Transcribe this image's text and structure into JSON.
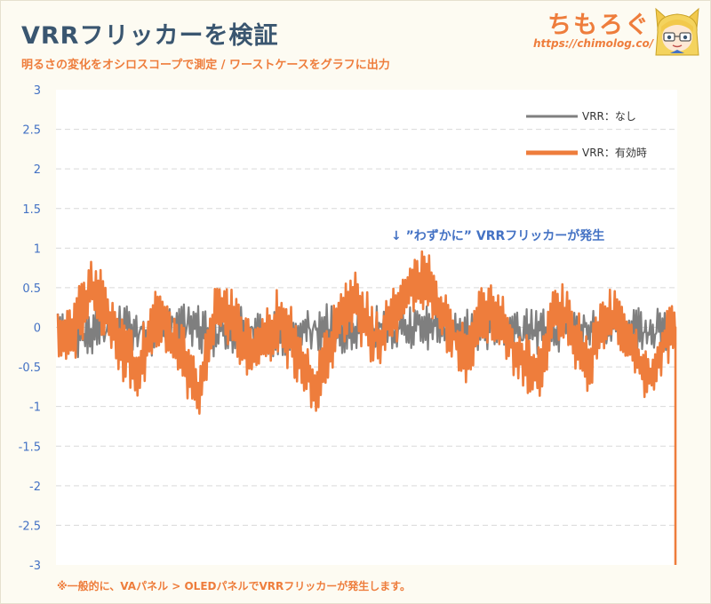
{
  "header": {
    "title": "VRRフリッカーを検証",
    "subtitle": "明るさの変化をオシロスコープで測定 / ワーストケースをグラフに出力"
  },
  "logo": {
    "text": "ちもろぐ",
    "url": "https://chimolog.co/"
  },
  "footnote": "※一般的に、VAパネル > OLEDパネルでVRRフリッカーが発生します。",
  "colors": {
    "gray_series": "#7f7f7f",
    "orange_series": "#ee7d3c",
    "tick_text": "#4472c4",
    "annotation": "#4472c4",
    "grid": "#d9d9d9"
  },
  "chart_data": {
    "type": "line",
    "title": "VRRフリッカーを検証",
    "xlabel": "",
    "ylabel": "",
    "ylim": [
      -3,
      3
    ],
    "yticks": [
      3,
      2.5,
      2,
      1.5,
      1,
      0.5,
      0,
      -0.5,
      -1,
      -1.5,
      -2,
      -2.5,
      -3
    ],
    "ytick_labels": [
      "3",
      "2.5",
      "2",
      "1.5",
      "1",
      "0.5",
      "0",
      "-0.5",
      "-1",
      "-1.5",
      "-2",
      "-2.5",
      "-3"
    ],
    "grid": true,
    "legend_position": "top-right",
    "annotation": "↓ ”わずかに” VRRフリッカーが発生",
    "series": [
      {
        "name": "VRR：なし",
        "color": "#7f7f7f",
        "amplitude": 0.2,
        "noise": 0.15,
        "envelope": [
          [
            0.0,
            -0.05
          ],
          [
            0.05,
            -0.1
          ],
          [
            0.1,
            0.0
          ],
          [
            0.15,
            -0.05
          ],
          [
            0.2,
            0.05
          ],
          [
            0.25,
            -0.1
          ],
          [
            0.3,
            0.0
          ],
          [
            0.35,
            -0.1
          ],
          [
            0.4,
            0.0
          ],
          [
            0.45,
            -0.05
          ],
          [
            0.5,
            0.0
          ],
          [
            0.55,
            -0.05
          ],
          [
            0.6,
            0.05
          ],
          [
            0.65,
            -0.05
          ],
          [
            0.7,
            0.0
          ],
          [
            0.75,
            -0.1
          ],
          [
            0.8,
            0.0
          ],
          [
            0.85,
            -0.05
          ],
          [
            0.9,
            0.0
          ],
          [
            0.95,
            -0.05
          ],
          [
            1.0,
            -0.05
          ]
        ]
      },
      {
        "name": "VRR：有効時",
        "color": "#ee7d3c",
        "amplitude": 0.35,
        "noise": 0.1,
        "envelope": [
          [
            0.0,
            0.0
          ],
          [
            0.02,
            -0.1
          ],
          [
            0.04,
            0.25
          ],
          [
            0.05,
            0.45
          ],
          [
            0.07,
            0.3
          ],
          [
            0.09,
            0.0
          ],
          [
            0.11,
            -0.3
          ],
          [
            0.13,
            -0.6
          ],
          [
            0.15,
            0.0
          ],
          [
            0.17,
            0.1
          ],
          [
            0.19,
            -0.2
          ],
          [
            0.21,
            -0.5
          ],
          [
            0.23,
            -0.85
          ],
          [
            0.25,
            0.05
          ],
          [
            0.26,
            0.3
          ],
          [
            0.28,
            0.1
          ],
          [
            0.3,
            -0.2
          ],
          [
            0.32,
            -0.3
          ],
          [
            0.34,
            -0.1
          ],
          [
            0.36,
            0.1
          ],
          [
            0.38,
            -0.2
          ],
          [
            0.4,
            -0.5
          ],
          [
            0.42,
            -0.75
          ],
          [
            0.43,
            -0.5
          ],
          [
            0.45,
            0.0
          ],
          [
            0.46,
            0.2
          ],
          [
            0.48,
            0.3
          ],
          [
            0.5,
            0.05
          ],
          [
            0.52,
            -0.2
          ],
          [
            0.54,
            0.1
          ],
          [
            0.56,
            0.4
          ],
          [
            0.58,
            0.6
          ],
          [
            0.6,
            0.55
          ],
          [
            0.62,
            0.2
          ],
          [
            0.64,
            -0.1
          ],
          [
            0.66,
            -0.4
          ],
          [
            0.68,
            0.1
          ],
          [
            0.7,
            0.2
          ],
          [
            0.72,
            0.0
          ],
          [
            0.74,
            -0.3
          ],
          [
            0.76,
            -0.45
          ],
          [
            0.78,
            -0.6
          ],
          [
            0.79,
            -0.2
          ],
          [
            0.8,
            0.25
          ],
          [
            0.82,
            0.2
          ],
          [
            0.84,
            -0.2
          ],
          [
            0.86,
            -0.45
          ],
          [
            0.88,
            0.0
          ],
          [
            0.9,
            0.15
          ],
          [
            0.92,
            -0.1
          ],
          [
            0.94,
            -0.4
          ],
          [
            0.96,
            -0.7
          ],
          [
            0.98,
            -0.2
          ],
          [
            1.0,
            0.0
          ]
        ],
        "end_value": -3
      }
    ]
  }
}
